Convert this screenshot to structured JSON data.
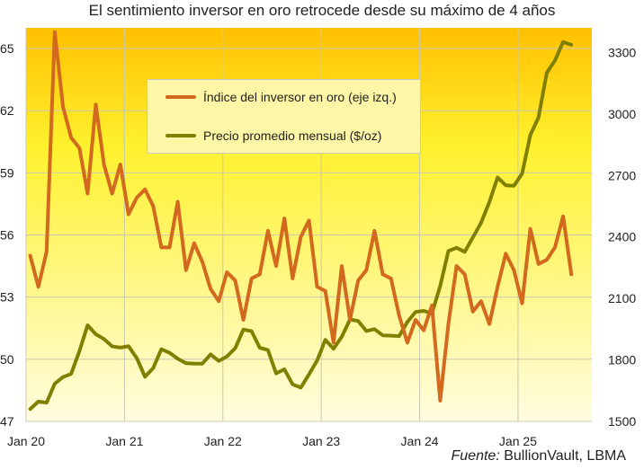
{
  "chart_data": {
    "type": "line",
    "title": "El sentimiento inversor en oro retrocede desde su máximo de 4 años",
    "source_label": "Fuente:",
    "source_text": " BullionVault, LBMA",
    "x_ticks": [
      "Jan 20",
      "Jan 21",
      "Jan 22",
      "Jan 23",
      "Jan 24",
      "Jan 25"
    ],
    "x_range": [
      "Jan 20",
      "Sep 25"
    ],
    "y_left": {
      "ticks": [
        "47",
        "50",
        "53",
        "56",
        "59",
        "62",
        "65"
      ],
      "lim": [
        47,
        66
      ]
    },
    "y_right": {
      "ticks": [
        "1500",
        "1800",
        "2100",
        "2400",
        "2700",
        "3000",
        "3300"
      ],
      "lim": [
        1500,
        3420
      ]
    },
    "legend_position": "top-left",
    "grid": true,
    "colors": {
      "index": "#d2691e",
      "price": "#808000",
      "bg_top": "#ffc000",
      "bg_bottom": "#fffde0",
      "grid": "#c8c8b4"
    },
    "series": [
      {
        "name": "Índice del inversor en oro (eje izq.)",
        "axis": "left",
        "start": "Jan 20",
        "values": [
          55.0,
          53.5,
          55.2,
          65.8,
          62.2,
          60.7,
          60.2,
          58.0,
          62.3,
          59.4,
          58.0,
          59.4,
          57.0,
          57.8,
          58.2,
          57.4,
          55.4,
          55.4,
          57.6,
          54.3,
          55.6,
          54.7,
          53.4,
          52.8,
          54.2,
          53.8,
          51.9,
          53.9,
          54.1,
          56.2,
          54.5,
          56.8,
          53.9,
          55.9,
          56.7,
          53.5,
          53.3,
          50.8,
          54.5,
          51.9,
          53.8,
          54.3,
          56.2,
          54.1,
          53.9,
          52.1,
          50.8,
          51.9,
          51.4,
          52.6,
          48.0,
          51.7,
          54.5,
          54.1,
          52.3,
          52.8,
          51.7,
          53.5,
          55.1,
          54.3,
          52.7,
          56.3,
          54.6,
          54.8,
          55.4,
          56.9,
          54.1
        ]
      },
      {
        "name": "Precio promedio mensual ($/oz)",
        "axis": "right",
        "start": "Jan 20",
        "values": [
          1560,
          1597,
          1591,
          1684,
          1716,
          1732,
          1843,
          1969,
          1925,
          1902,
          1866,
          1860,
          1867,
          1808,
          1718,
          1760,
          1852,
          1835,
          1806,
          1784,
          1782,
          1782,
          1827,
          1795,
          1817,
          1857,
          1948,
          1940,
          1859,
          1848,
          1734,
          1754,
          1681,
          1665,
          1729,
          1797,
          1898,
          1854,
          1913,
          1997,
          1990,
          1941,
          1950,
          1920,
          1918,
          1916,
          1985,
          2034,
          2039,
          2027,
          2160,
          2331,
          2347,
          2327,
          2398,
          2469,
          2570,
          2690,
          2652,
          2650,
          2709,
          2897,
          2983,
          3201,
          3261,
          3351,
          3337
        ]
      }
    ]
  }
}
